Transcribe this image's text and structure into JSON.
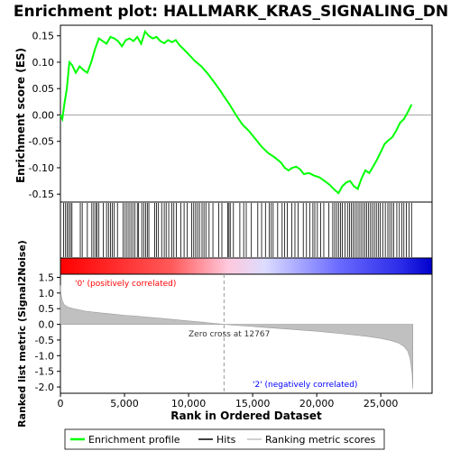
{
  "chart_data": {
    "type": "line",
    "title": "Enrichment plot: HALLMARK_KRAS_SIGNALING_DN",
    "xlabel": "Rank in Ordered Dataset",
    "xlim": [
      0,
      29000
    ],
    "x_ticks": [
      "0",
      "5,000",
      "10,000",
      "15,000",
      "20,000",
      "25,000"
    ],
    "x_tick_values": [
      0,
      5000,
      10000,
      15000,
      20000,
      25000
    ],
    "panels": {
      "es": {
        "ylabel": "Enrichment score (ES)",
        "ylim": [
          -0.165,
          0.17
        ],
        "y_ticks": [
          "-0.15",
          "-0.10",
          "-0.05",
          "0.00",
          "0.05",
          "0.10",
          "0.15"
        ],
        "y_tick_values": [
          -0.15,
          -0.1,
          -0.05,
          0.0,
          0.05,
          0.1,
          0.15
        ],
        "series": [
          {
            "name": "Enrichment profile",
            "color": "#00ff00",
            "x": [
              0,
              150,
              300,
              500,
              700,
              900,
              1200,
              1500,
              1800,
              2100,
              2400,
              2700,
              3000,
              3300,
              3600,
              3900,
              4200,
              4500,
              4800,
              5100,
              5400,
              5700,
              6000,
              6300,
              6600,
              6900,
              7200,
              7500,
              7800,
              8100,
              8400,
              8700,
              9000,
              9300,
              9600,
              10000,
              10500,
              11000,
              11500,
              12000,
              12500,
              12767,
              13200,
              13700,
              14200,
              14700,
              15200,
              15700,
              16200,
              16700,
              17200,
              17500,
              17800,
              18100,
              18400,
              18700,
              19000,
              19400,
              19800,
              20200,
              20600,
              21000,
              21400,
              21700,
              22000,
              22300,
              22600,
              22900,
              23200,
              23500,
              23800,
              24100,
              24400,
              24700,
              25000,
              25300,
              25600,
              25900,
              26200,
              26500,
              26800,
              27100,
              27400
            ],
            "y": [
              0.0,
              -0.008,
              0.02,
              0.05,
              0.1,
              0.095,
              0.08,
              0.092,
              0.085,
              0.08,
              0.1,
              0.125,
              0.145,
              0.14,
              0.135,
              0.148,
              0.145,
              0.14,
              0.13,
              0.142,
              0.145,
              0.14,
              0.148,
              0.135,
              0.158,
              0.15,
              0.145,
              0.148,
              0.14,
              0.136,
              0.142,
              0.138,
              0.142,
              0.132,
              0.125,
              0.115,
              0.102,
              0.092,
              0.078,
              0.062,
              0.045,
              0.035,
              0.02,
              0.0,
              -0.018,
              -0.03,
              -0.045,
              -0.06,
              -0.072,
              -0.08,
              -0.09,
              -0.1,
              -0.105,
              -0.1,
              -0.098,
              -0.103,
              -0.112,
              -0.11,
              -0.115,
              -0.118,
              -0.125,
              -0.132,
              -0.142,
              -0.148,
              -0.135,
              -0.128,
              -0.125,
              -0.135,
              -0.14,
              -0.12,
              -0.105,
              -0.11,
              -0.098,
              -0.085,
              -0.07,
              -0.055,
              -0.048,
              -0.042,
              -0.03,
              -0.015,
              -0.008,
              0.005,
              0.02
            ]
          }
        ]
      },
      "hits": {
        "name": "Hits",
        "color": "#000000",
        "x": [
          250,
          400,
          520,
          650,
          780,
          900,
          1550,
          1700,
          2100,
          2450,
          2600,
          2750,
          2850,
          3000,
          3350,
          3600,
          3750,
          3900,
          4050,
          4200,
          4450,
          4900,
          5050,
          5200,
          5350,
          5500,
          5650,
          5800,
          6000,
          6100,
          6350,
          6500,
          6650,
          6780,
          6900,
          7350,
          7500,
          7650,
          7900,
          8100,
          8250,
          8450,
          8700,
          8850,
          9050,
          9400,
          9650,
          9900,
          10250,
          10400,
          10550,
          10700,
          10850,
          11050,
          11200,
          11350,
          11600,
          11900,
          12350,
          12600,
          13050,
          13150,
          13250,
          13500,
          14000,
          14300,
          14500,
          14900,
          15400,
          15700,
          16000,
          16300,
          16450,
          16600,
          16950,
          17300,
          17500,
          17700,
          18050,
          18300,
          18550,
          18950,
          19200,
          19450,
          19700,
          19850,
          20050,
          20300,
          20550,
          20950,
          21250,
          21400,
          21550,
          21700,
          21850,
          22000,
          22200,
          22400,
          22550,
          22700,
          22850,
          23000,
          23150,
          23300,
          23450,
          23600,
          23750,
          23900,
          24050,
          24200,
          24350,
          24500,
          24650,
          24800,
          24950,
          25150,
          25350,
          25550,
          25700,
          25850,
          26000,
          26250,
          26450,
          26650,
          26800,
          27000,
          27200,
          27400
        ]
      },
      "ranked_metric": {
        "name": "Ranking metric scores",
        "ylabel": "Ranked list metric (Signal2Noise)",
        "ylim": [
          -2.2,
          1.6
        ],
        "y_ticks": [
          "-2.0",
          "-1.5",
          "-1.0",
          "-0.5",
          "0.0",
          "0.5",
          "1.0",
          "1.5"
        ],
        "y_tick_values": [
          -2.0,
          -1.5,
          -1.0,
          -0.5,
          0.0,
          0.5,
          1.0,
          1.5
        ],
        "x": [
          0,
          50,
          150,
          300,
          600,
          1000,
          2000,
          3000,
          4000,
          5000,
          6000,
          7000,
          8000,
          9000,
          10000,
          11000,
          12000,
          12767,
          14000,
          15000,
          16000,
          17000,
          18000,
          19000,
          20000,
          21000,
          22000,
          23000,
          24000,
          25000,
          25800,
          26400,
          26800,
          27100,
          27300,
          27450,
          27500
        ],
        "y": [
          1.25,
          0.95,
          0.75,
          0.62,
          0.55,
          0.5,
          0.42,
          0.37,
          0.33,
          0.29,
          0.26,
          0.22,
          0.19,
          0.15,
          0.11,
          0.07,
          0.03,
          0.0,
          -0.04,
          -0.07,
          -0.1,
          -0.13,
          -0.16,
          -0.19,
          -0.22,
          -0.26,
          -0.3,
          -0.34,
          -0.39,
          -0.45,
          -0.52,
          -0.6,
          -0.7,
          -0.85,
          -1.1,
          -1.6,
          -2.05
        ]
      }
    },
    "annotations": {
      "zero_cross": "Zero cross at 12767",
      "zero_cross_x": 12767,
      "positive": "'0' (positively correlated)",
      "negative": "'2' (negatively correlated)",
      "positive_color": "#ff0000",
      "negative_color": "#0000ff"
    },
    "legend": {
      "placement": "bottom",
      "items": [
        {
          "label": "Enrichment profile",
          "color": "#00ff00"
        },
        {
          "label": "Hits",
          "color": "#000000"
        },
        {
          "label": "Ranking metric scores",
          "color": "#c0c0c0"
        }
      ]
    }
  }
}
